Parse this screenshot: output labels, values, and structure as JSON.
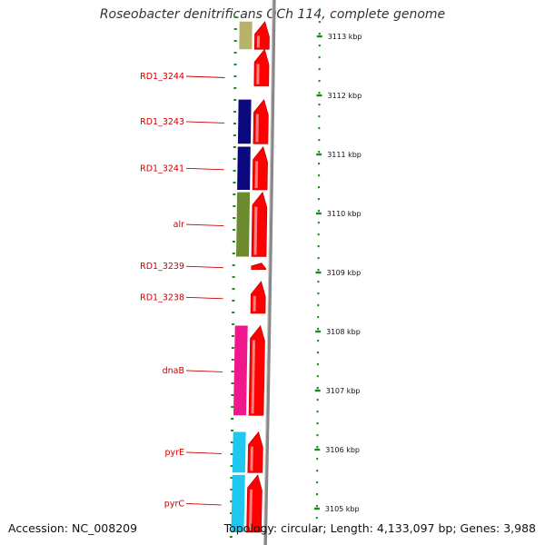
{
  "title": "Roseobacter denitrificans OCh 114, complete genome",
  "footer": {
    "accession": "Accession: NC_008209",
    "topology": "Topology: circular; Length: 4,133,097 bp; Genes: 3,988"
  },
  "scale_unit": "kbp",
  "scale_ticks": [
    3113,
    3112,
    3111,
    3110,
    3109,
    3108,
    3107,
    3106,
    3105
  ],
  "genes": [
    {
      "label": "",
      "start_kbp": 3113.25,
      "end_kbp": 3112.78,
      "cog_color": "#b8b36a"
    },
    {
      "label": "RD1_3244",
      "start_kbp": 3112.78,
      "end_kbp": 3112.16,
      "cog_color": null
    },
    {
      "label": "RD1_3243",
      "start_kbp": 3111.93,
      "end_kbp": 3111.18,
      "cog_color": "#0a0a7e"
    },
    {
      "label": "RD1_3241",
      "start_kbp": 3111.13,
      "end_kbp": 3110.4,
      "cog_color": "#0a0a7e"
    },
    {
      "label": "alr",
      "start_kbp": 3110.36,
      "end_kbp": 3109.27,
      "cog_color": "#6e8a2e"
    },
    {
      "label": "RD1_3239",
      "start_kbp": 3109.16,
      "end_kbp": 3109.05,
      "cog_color": null
    },
    {
      "label": "RD1_3238",
      "start_kbp": 3108.85,
      "end_kbp": 3108.31,
      "cog_color": null
    },
    {
      "label": "dnaB",
      "start_kbp": 3108.1,
      "end_kbp": 3106.58,
      "cog_color": "#f0168c"
    },
    {
      "label": "pyrE",
      "start_kbp": 3106.3,
      "end_kbp": 3105.61,
      "cog_color": "#1ec8f0"
    },
    {
      "label": "pyrC",
      "start_kbp": 3105.57,
      "end_kbp": 3104.6,
      "cog_color": "#1ec8f0"
    }
  ],
  "colors": {
    "gene_arrow": "#ff0000",
    "backbone": "#888888",
    "scale_tick": "#1a8a1a",
    "label_text": "#cc0000",
    "leader_line": "#cc0000"
  }
}
